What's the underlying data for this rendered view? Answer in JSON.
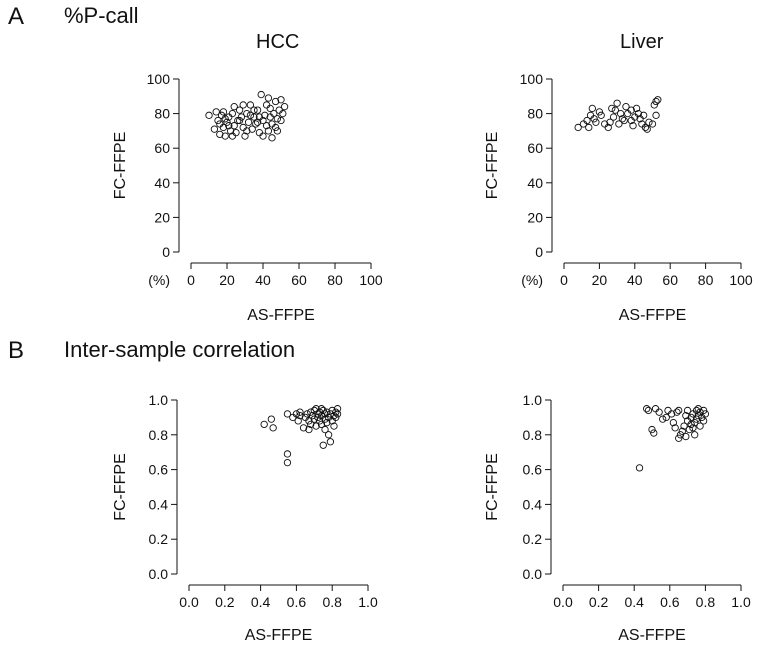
{
  "panels": [
    {
      "letter": "A",
      "title": "%P-call"
    },
    {
      "letter": "B",
      "title": "Inter-sample correlation"
    }
  ],
  "column_titles": [
    "HCC",
    "Liver"
  ],
  "colors": {
    "marker_stroke": "#111111",
    "axis": "#111111",
    "background": "#ffffff"
  },
  "chart_data": [
    {
      "id": "A-HCC",
      "type": "scatter",
      "title": "HCC",
      "xlabel": "AS-FFPE",
      "ylabel": "FC-FFPE",
      "unit_label": "(%)",
      "xlim": [
        0,
        100
      ],
      "ylim": [
        0,
        100
      ],
      "xticks": [
        0,
        20,
        40,
        60,
        80,
        100
      ],
      "yticks": [
        0,
        20,
        40,
        60,
        80,
        100
      ],
      "points": [
        [
          10,
          79
        ],
        [
          13,
          71
        ],
        [
          14,
          81
        ],
        [
          15,
          76
        ],
        [
          16,
          68
        ],
        [
          16,
          74
        ],
        [
          17,
          79
        ],
        [
          18,
          72
        ],
        [
          18,
          81
        ],
        [
          19,
          67
        ],
        [
          20,
          75
        ],
        [
          21,
          78
        ],
        [
          22,
          70
        ],
        [
          23,
          80
        ],
        [
          24,
          73
        ],
        [
          25,
          69
        ],
        [
          26,
          76
        ],
        [
          27,
          82
        ],
        [
          28,
          78
        ],
        [
          29,
          72
        ],
        [
          30,
          67
        ],
        [
          31,
          80
        ],
        [
          32,
          75
        ],
        [
          33,
          85
        ],
        [
          34,
          71
        ],
        [
          35,
          78
        ],
        [
          36,
          74
        ],
        [
          37,
          82
        ],
        [
          38,
          69
        ],
        [
          38,
          78
        ],
        [
          39,
          91
        ],
        [
          40,
          76
        ],
        [
          40,
          67
        ],
        [
          41,
          79
        ],
        [
          42,
          85
        ],
        [
          42,
          73
        ],
        [
          43,
          70
        ],
        [
          44,
          78
        ],
        [
          44,
          83
        ],
        [
          45,
          66
        ],
        [
          45,
          74
        ],
        [
          46,
          80
        ],
        [
          47,
          87
        ],
        [
          47,
          72
        ],
        [
          48,
          77
        ],
        [
          49,
          82
        ],
        [
          50,
          76
        ],
        [
          50,
          88
        ],
        [
          51,
          80
        ],
        [
          52,
          84
        ],
        [
          27,
          76
        ],
        [
          35,
          82
        ],
        [
          24,
          84
        ],
        [
          31,
          70
        ],
        [
          21,
          73
        ],
        [
          29,
          85
        ],
        [
          37,
          75
        ],
        [
          43,
          89
        ],
        [
          19,
          77
        ],
        [
          33,
          79
        ],
        [
          23,
          67
        ],
        [
          48,
          70
        ]
      ]
    },
    {
      "id": "A-Liver",
      "type": "scatter",
      "title": "Liver",
      "xlabel": "AS-FFPE",
      "ylabel": "FC-FFPE",
      "unit_label": "(%)",
      "xlim": [
        0,
        100
      ],
      "ylim": [
        0,
        100
      ],
      "xticks": [
        0,
        20,
        40,
        60,
        80,
        100
      ],
      "yticks": [
        0,
        20,
        40,
        60,
        80,
        100
      ],
      "points": [
        [
          8,
          72
        ],
        [
          11,
          74
        ],
        [
          13,
          76
        ],
        [
          14,
          72
        ],
        [
          15,
          79
        ],
        [
          16,
          83
        ],
        [
          17,
          77
        ],
        [
          18,
          75
        ],
        [
          21,
          79
        ],
        [
          23,
          74
        ],
        [
          25,
          72
        ],
        [
          26,
          75
        ],
        [
          28,
          78
        ],
        [
          29,
          82
        ],
        [
          30,
          86
        ],
        [
          31,
          74
        ],
        [
          32,
          80
        ],
        [
          33,
          77
        ],
        [
          35,
          84
        ],
        [
          36,
          80
        ],
        [
          38,
          76
        ],
        [
          38,
          82
        ],
        [
          39,
          73
        ],
        [
          40,
          78
        ],
        [
          41,
          83
        ],
        [
          42,
          80
        ],
        [
          43,
          77
        ],
        [
          44,
          74
        ],
        [
          45,
          79
        ],
        [
          47,
          71
        ],
        [
          48,
          75
        ],
        [
          50,
          74
        ],
        [
          51,
          85
        ],
        [
          52,
          79
        ],
        [
          52,
          87
        ],
        [
          53,
          88
        ],
        [
          34,
          76
        ],
        [
          27,
          83
        ],
        [
          20,
          81
        ],
        [
          46,
          72
        ]
      ]
    },
    {
      "id": "B-HCC",
      "type": "scatter",
      "title": "",
      "xlabel": "AS-FFPE",
      "ylabel": "FC-FFPE",
      "xlim": [
        0,
        1
      ],
      "ylim": [
        0,
        1
      ],
      "xticks": [
        0.0,
        0.2,
        0.4,
        0.6,
        0.8,
        1.0
      ],
      "yticks": [
        0.0,
        0.2,
        0.4,
        0.6,
        0.8,
        1.0
      ],
      "points": [
        [
          0.42,
          0.86
        ],
        [
          0.46,
          0.89
        ],
        [
          0.47,
          0.84
        ],
        [
          0.55,
          0.69
        ],
        [
          0.55,
          0.64
        ],
        [
          0.55,
          0.92
        ],
        [
          0.58,
          0.9
        ],
        [
          0.6,
          0.92
        ],
        [
          0.61,
          0.88
        ],
        [
          0.62,
          0.91
        ],
        [
          0.64,
          0.84
        ],
        [
          0.65,
          0.9
        ],
        [
          0.66,
          0.92
        ],
        [
          0.67,
          0.88
        ],
        [
          0.68,
          0.93
        ],
        [
          0.68,
          0.86
        ],
        [
          0.69,
          0.91
        ],
        [
          0.7,
          0.94
        ],
        [
          0.7,
          0.89
        ],
        [
          0.71,
          0.85
        ],
        [
          0.72,
          0.92
        ],
        [
          0.72,
          0.9
        ],
        [
          0.73,
          0.88
        ],
        [
          0.73,
          0.93
        ],
        [
          0.74,
          0.91
        ],
        [
          0.74,
          0.86
        ],
        [
          0.75,
          0.74
        ],
        [
          0.75,
          0.94
        ],
        [
          0.76,
          0.89
        ],
        [
          0.76,
          0.92
        ],
        [
          0.77,
          0.87
        ],
        [
          0.77,
          0.93
        ],
        [
          0.78,
          0.9
        ],
        [
          0.78,
          0.8
        ],
        [
          0.79,
          0.92
        ],
        [
          0.79,
          0.76
        ],
        [
          0.8,
          0.94
        ],
        [
          0.8,
          0.88
        ],
        [
          0.81,
          0.91
        ],
        [
          0.81,
          0.85
        ],
        [
          0.82,
          0.93
        ],
        [
          0.82,
          0.9
        ],
        [
          0.83,
          0.95
        ],
        [
          0.83,
          0.92
        ],
        [
          0.76,
          0.83
        ],
        [
          0.71,
          0.95
        ],
        [
          0.67,
          0.83
        ],
        [
          0.62,
          0.93
        ],
        [
          0.74,
          0.95
        ]
      ]
    },
    {
      "id": "B-Liver",
      "type": "scatter",
      "title": "",
      "xlabel": "AS-FFPE",
      "ylabel": "FC-FFPE",
      "xlim": [
        0,
        1
      ],
      "ylim": [
        0,
        1
      ],
      "xticks": [
        0.0,
        0.2,
        0.4,
        0.6,
        0.8,
        1.0
      ],
      "yticks": [
        0.0,
        0.2,
        0.4,
        0.6,
        0.8,
        1.0
      ],
      "points": [
        [
          0.43,
          0.61
        ],
        [
          0.47,
          0.95
        ],
        [
          0.48,
          0.94
        ],
        [
          0.5,
          0.83
        ],
        [
          0.51,
          0.81
        ],
        [
          0.52,
          0.95
        ],
        [
          0.54,
          0.93
        ],
        [
          0.56,
          0.89
        ],
        [
          0.59,
          0.94
        ],
        [
          0.61,
          0.92
        ],
        [
          0.62,
          0.87
        ],
        [
          0.63,
          0.84
        ],
        [
          0.64,
          0.93
        ],
        [
          0.65,
          0.78
        ],
        [
          0.66,
          0.8
        ],
        [
          0.67,
          0.82
        ],
        [
          0.68,
          0.85
        ],
        [
          0.69,
          0.91
        ],
        [
          0.7,
          0.94
        ],
        [
          0.7,
          0.88
        ],
        [
          0.71,
          0.83
        ],
        [
          0.72,
          0.9
        ],
        [
          0.72,
          0.86
        ],
        [
          0.73,
          0.92
        ],
        [
          0.74,
          0.87
        ],
        [
          0.74,
          0.8
        ],
        [
          0.75,
          0.94
        ],
        [
          0.75,
          0.89
        ],
        [
          0.76,
          0.91
        ],
        [
          0.77,
          0.85
        ],
        [
          0.77,
          0.93
        ],
        [
          0.78,
          0.9
        ],
        [
          0.79,
          0.94
        ],
        [
          0.79,
          0.88
        ],
        [
          0.8,
          0.92
        ],
        [
          0.73,
          0.84
        ],
        [
          0.65,
          0.94
        ],
        [
          0.58,
          0.9
        ],
        [
          0.69,
          0.79
        ],
        [
          0.76,
          0.95
        ]
      ]
    }
  ]
}
